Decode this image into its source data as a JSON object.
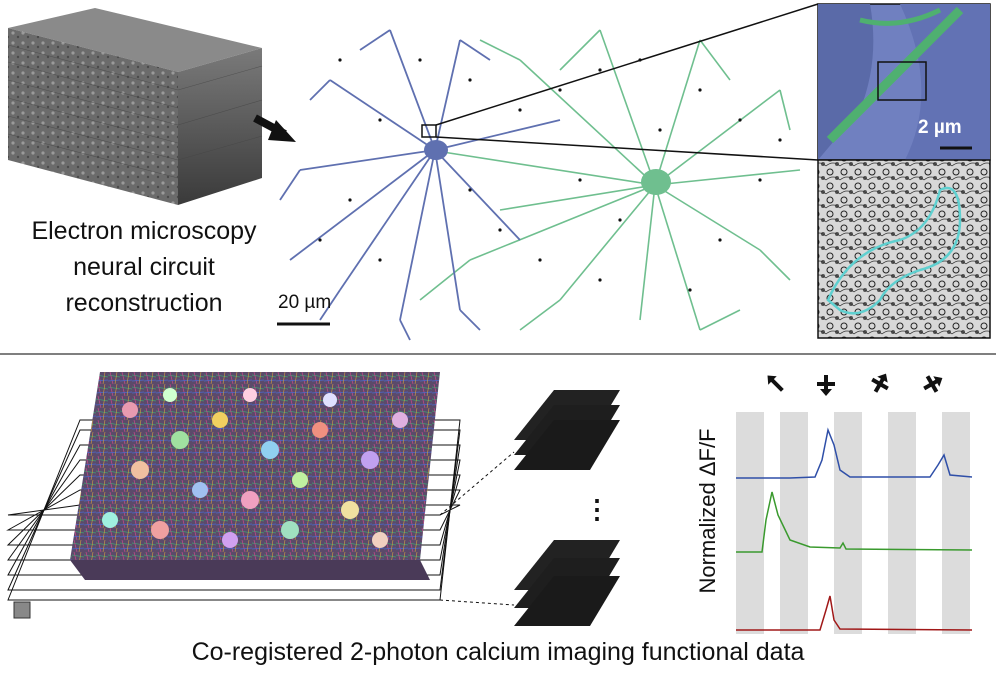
{
  "top_panel": {
    "title_lines": [
      "Electron microscopy",
      "neural circuit",
      "reconstruction"
    ],
    "scalebar_main": "20 µm",
    "scalebar_inset": "2 µm"
  },
  "bottom_panel": {
    "title": "Co-registered 2-photon calcium imaging functional data",
    "traces_ylabel": "Normalized ΔF/F",
    "ellipsis": "⋮",
    "stimulus_icons": [
      "direction-arrow-icon",
      "direction-arrow-icon",
      "direction-arrow-icon",
      "direction-arrow-icon"
    ],
    "trace_colors": {
      "blue": "#2f4fa8",
      "green": "#3a9a2e",
      "red": "#a01818"
    }
  },
  "colors": {
    "blue_neuron": "#5f70b0",
    "green_neuron": "#6fbf8f",
    "dark_block": "#3a3a3a",
    "stim_band": "#dcdcdc"
  }
}
